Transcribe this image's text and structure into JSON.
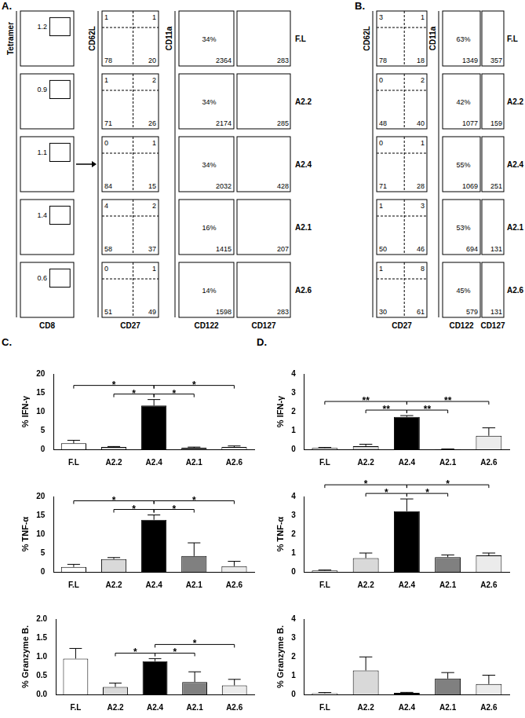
{
  "flow_panels": [
    {
      "label": "A.",
      "rows": [
        "F.L",
        "A2.2",
        "A2.4",
        "A2.1",
        "A2.6"
      ],
      "columns": [
        {
          "kind": "gate",
          "y_axis": "Tetramer",
          "x_axis": "CD8",
          "values": [
            1.2,
            0.9,
            1.1,
            1.4,
            0.6
          ]
        },
        {
          "kind": "quadrant",
          "y_axis": "CD62L",
          "x_axis": "CD27",
          "values": [
            [
              1,
              1,
              78,
              20
            ],
            [
              1,
              2,
              71,
              26
            ],
            [
              0,
              1,
              84,
              15
            ],
            [
              4,
              2,
              58,
              37
            ],
            [
              0,
              1,
              51,
              49
            ]
          ]
        },
        {
          "kind": "percent_mfi",
          "y_axis": "CD11a",
          "x_axis": "CD122",
          "percent": [
            "34%",
            "34%",
            "34%",
            "16%",
            "14%"
          ],
          "mfi": [
            2364,
            2174,
            2032,
            1415,
            1598
          ]
        },
        {
          "kind": "mfi",
          "x_axis": "CD127",
          "values": [
            283,
            285,
            428,
            207,
            283
          ]
        }
      ]
    },
    {
      "label": "B.",
      "rows": [
        "F.L",
        "A2.2",
        "A2.4",
        "A2.1",
        "A2.6"
      ],
      "columns": [
        {
          "kind": "quadrant",
          "y_axis": "CD62L",
          "x_axis": "CD27",
          "values": [
            [
              3,
              1,
              78,
              18
            ],
            [
              0,
              2,
              48,
              40
            ],
            [
              0,
              1,
              71,
              28
            ],
            [
              1,
              3,
              50,
              46
            ],
            [
              1,
              8,
              30,
              61
            ]
          ]
        },
        {
          "kind": "percent_mfi",
          "y_axis": "CD11a",
          "x_axis": "CD122",
          "percent": [
            "63%",
            "42%",
            "55%",
            "53%",
            "45%"
          ],
          "mfi": [
            1349,
            1077,
            1069,
            694,
            579
          ]
        },
        {
          "kind": "mfi",
          "x_axis": "CD127",
          "values": [
            357,
            159,
            251,
            131,
            131
          ]
        }
      ]
    }
  ],
  "chart_panel_labels": [
    "C.",
    "D."
  ],
  "chart_data": [
    {
      "type": "bar",
      "y_label": "% IFN-γ",
      "categories": [
        "F.L",
        "A2.2",
        "A2.4",
        "A2.1",
        "A2.6"
      ],
      "values": [
        1.6,
        0.6,
        11.6,
        0.4,
        0.6
      ],
      "errors": [
        0.8,
        0.15,
        1.6,
        0.2,
        0.3
      ],
      "colors": [
        "#ffffff",
        "#d9d9d9",
        "#000000",
        "#808080",
        "#ebebeb"
      ],
      "ylim": [
        0,
        20
      ],
      "yticks": [
        0,
        5,
        10,
        15,
        20
      ],
      "grid": false,
      "significance": [
        {
          "from": "F.L",
          "to": "A2.4",
          "label": "*"
        },
        {
          "from": "A2.2",
          "to": "A2.4",
          "label": "*"
        },
        {
          "from": "A2.4",
          "to": "A2.1",
          "label": "*"
        },
        {
          "from": "A2.4",
          "to": "A2.6",
          "label": "*"
        }
      ]
    },
    {
      "type": "bar",
      "y_label": "% TNF-α",
      "categories": [
        "F.L",
        "A2.2",
        "A2.4",
        "A2.1",
        "A2.6"
      ],
      "values": [
        1.3,
        3.4,
        13.8,
        4.2,
        1.5
      ],
      "errors": [
        0.7,
        0.4,
        1.3,
        3.5,
        1.3
      ],
      "colors": [
        "#ffffff",
        "#d9d9d9",
        "#000000",
        "#808080",
        "#ebebeb"
      ],
      "ylim": [
        0,
        20
      ],
      "yticks": [
        0,
        5,
        10,
        15,
        20
      ],
      "grid": false,
      "significance": [
        {
          "from": "F.L",
          "to": "A2.4",
          "label": "*"
        },
        {
          "from": "A2.2",
          "to": "A2.4",
          "label": "*"
        },
        {
          "from": "A2.4",
          "to": "A2.1",
          "label": "*"
        },
        {
          "from": "A2.4",
          "to": "A2.6",
          "label": "*"
        }
      ]
    },
    {
      "type": "bar",
      "y_label": "% Granzyme B.",
      "categories": [
        "F.L",
        "A2.2",
        "A2.4",
        "A2.1",
        "A2.6"
      ],
      "values": [
        0.95,
        0.2,
        0.88,
        0.33,
        0.24
      ],
      "errors": [
        0.27,
        0.1,
        0.07,
        0.27,
        0.16
      ],
      "colors": [
        "#ffffff",
        "#d9d9d9",
        "#000000",
        "#808080",
        "#ebebeb"
      ],
      "ylim": [
        0,
        2
      ],
      "yticks": [
        {
          "value": 0,
          "label": "0.0"
        },
        {
          "value": 0.5,
          "label": "0.5"
        },
        {
          "value": 1,
          "label": "1.0"
        },
        {
          "value": 1.5,
          "label": "1.5"
        },
        {
          "value": 2,
          "label": "2.0"
        }
      ],
      "grid": false,
      "significance": [
        {
          "from": "A2.2",
          "to": "A2.4",
          "label": "*"
        },
        {
          "from": "A2.4",
          "to": "A2.1",
          "label": "*"
        },
        {
          "from": "A2.4",
          "to": "A2.6",
          "label": "*"
        }
      ]
    },
    {
      "type": "bar",
      "y_label": "% IFN-γ",
      "categories": [
        "F.L",
        "A2.2",
        "A2.4",
        "A2.1",
        "A2.6"
      ],
      "values": [
        0.07,
        0.17,
        1.72,
        0.01,
        0.72
      ],
      "errors": [
        0.03,
        0.1,
        0.07,
        0.01,
        0.42
      ],
      "colors": [
        "#ffffff",
        "#d9d9d9",
        "#000000",
        "#808080",
        "#ebebeb"
      ],
      "ylim": [
        0,
        4
      ],
      "yticks": [
        0,
        1,
        2,
        3,
        4
      ],
      "grid": false,
      "significance": [
        {
          "from": "F.L",
          "to": "A2.4",
          "label": "**"
        },
        {
          "from": "A2.2",
          "to": "A2.4",
          "label": "**"
        },
        {
          "from": "A2.4",
          "to": "A2.1",
          "label": "**"
        },
        {
          "from": "A2.4",
          "to": "A2.6",
          "label": "**"
        }
      ]
    },
    {
      "type": "bar",
      "y_label": "% TNF-α",
      "categories": [
        "F.L",
        "A2.2",
        "A2.4",
        "A2.1",
        "A2.6"
      ],
      "values": [
        0.07,
        0.73,
        3.22,
        0.78,
        0.87
      ],
      "errors": [
        0.03,
        0.27,
        0.65,
        0.12,
        0.13
      ],
      "colors": [
        "#ffffff",
        "#d9d9d9",
        "#000000",
        "#808080",
        "#ebebeb"
      ],
      "ylim": [
        0,
        4
      ],
      "yticks": [
        0,
        1,
        2,
        3,
        4
      ],
      "grid": false,
      "significance": [
        {
          "from": "F.L",
          "to": "A2.4",
          "label": "*"
        },
        {
          "from": "A2.2",
          "to": "A2.4",
          "label": "*"
        },
        {
          "from": "A2.4",
          "to": "A2.1",
          "label": "*"
        },
        {
          "from": "A2.4",
          "to": "A2.6",
          "label": "*"
        }
      ]
    },
    {
      "type": "bar",
      "y_label": "% Granzyme B.",
      "categories": [
        "F.L",
        "A2.2",
        "A2.4",
        "A2.1",
        "A2.6"
      ],
      "values": [
        0.06,
        1.27,
        0.08,
        0.84,
        0.55
      ],
      "errors": [
        0.04,
        0.72,
        0.03,
        0.32,
        0.47
      ],
      "colors": [
        "#ffffff",
        "#d9d9d9",
        "#000000",
        "#808080",
        "#ebebeb"
      ],
      "ylim": [
        0,
        4
      ],
      "yticks": [
        0,
        1,
        2,
        3,
        4
      ],
      "grid": false,
      "significance": []
    }
  ]
}
